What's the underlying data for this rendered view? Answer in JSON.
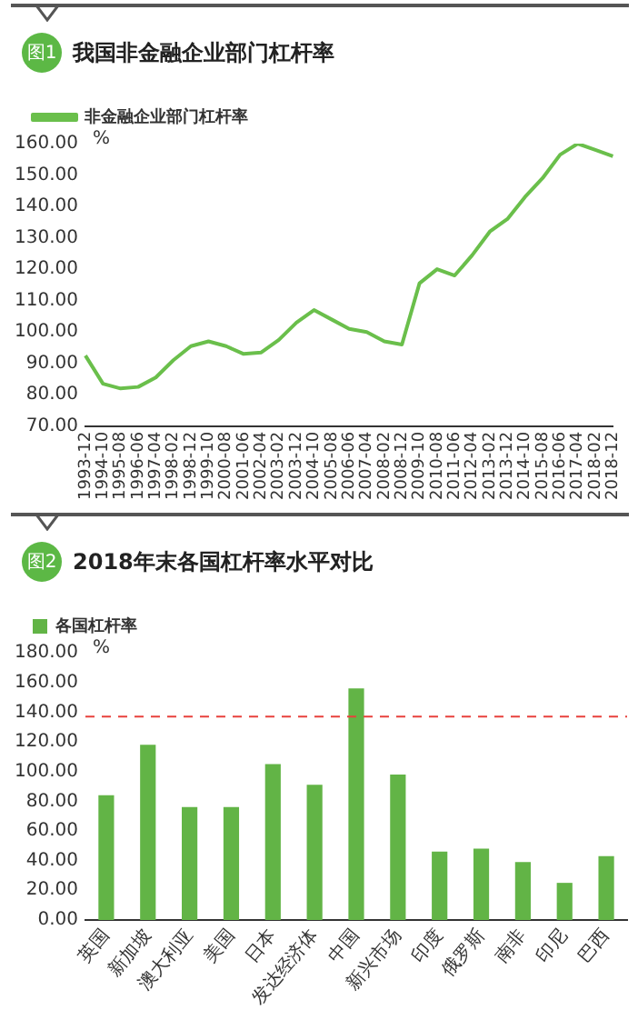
{
  "chart_data": [
    {
      "type": "line",
      "subtitle": "图1",
      "title": "我国非金融企业部门杠杆率",
      "ylabel": "%",
      "legend": "top left",
      "grid": false,
      "marker": "none",
      "line_style": "solid",
      "categories": [
        "1993-12",
        "1994-10",
        "1995-08",
        "1996-06",
        "1997-04",
        "1998-02",
        "1998-12",
        "1999-10",
        "2000-08",
        "2001-06",
        "2002-04",
        "2003-02",
        "2003-12",
        "2004-10",
        "2005-08",
        "2006-06",
        "2007-04",
        "2008-02",
        "2008-12",
        "2009-10",
        "2010-08",
        "2011-06",
        "2012-04",
        "2013-02",
        "2013-12",
        "2014-10",
        "2015-08",
        "2016-06",
        "2017-04",
        "2018-02",
        "2018-12"
      ],
      "series": [
        {
          "name": "非金融企业部门杠杆率",
          "color": "#6abf4b",
          "values": [
            92.5,
            83.5,
            82,
            82.5,
            85.5,
            91,
            95.5,
            97,
            95.5,
            93,
            93.5,
            97.5,
            103,
            107,
            104,
            101,
            100,
            97,
            96,
            115.5,
            120,
            118,
            124.5,
            132,
            136,
            143,
            149,
            156.5,
            160,
            158,
            156
          ]
        }
      ],
      "ylim": [
        70,
        160
      ],
      "yticks": [
        {
          "value": 70,
          "label": "70.00"
        },
        {
          "value": 80,
          "label": "80.00"
        },
        {
          "value": 90,
          "label": "90.00"
        },
        {
          "value": 100,
          "label": "100.00"
        },
        {
          "value": 110,
          "label": "110.00"
        },
        {
          "value": 120,
          "label": "120.00"
        },
        {
          "value": 130,
          "label": "130.00"
        },
        {
          "value": 140,
          "label": "140.00"
        },
        {
          "value": 150,
          "label": "150.00"
        },
        {
          "value": 160,
          "label": "160.00"
        }
      ]
    },
    {
      "type": "bar",
      "subtitle": "图2",
      "title": "2018年末各国杠杆率水平对比",
      "ylabel": "%",
      "legend": "top left",
      "grid": false,
      "categories": [
        "英国",
        "新加坡",
        "澳大利亚",
        "美国",
        "日本",
        "发达经济体",
        "中国",
        "新兴市场",
        "印度",
        "俄罗斯",
        "南非",
        "印尼",
        "巴西"
      ],
      "series": [
        {
          "name": "各国杠杆率",
          "color": "#62b446",
          "values": [
            84,
            118,
            76,
            76,
            105,
            91,
            156,
            98,
            46,
            48,
            39,
            25,
            43
          ]
        }
      ],
      "ref_lines": [
        {
          "axis": "y",
          "value": 137,
          "color": "#e8413c",
          "line_style": "dashed"
        }
      ],
      "ylim": [
        0,
        180
      ],
      "yticks": [
        {
          "value": 0,
          "label": "0.00"
        },
        {
          "value": 20,
          "label": "20.00"
        },
        {
          "value": 40,
          "label": "40.00"
        },
        {
          "value": 60,
          "label": "60.00"
        },
        {
          "value": 80,
          "label": "80.00"
        },
        {
          "value": 100,
          "label": "100.00"
        },
        {
          "value": 120,
          "label": "120.00"
        },
        {
          "value": 140,
          "label": "140.00"
        },
        {
          "value": 160,
          "label": "160.00"
        },
        {
          "value": 180,
          "label": "180.00"
        }
      ]
    }
  ]
}
